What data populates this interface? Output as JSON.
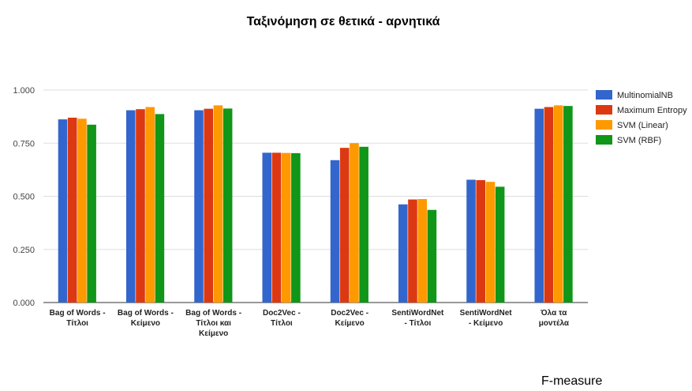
{
  "chart_data": {
    "type": "bar",
    "title": "Ταξινόμηση σε θετικά - αρνητικά",
    "xlabel": "",
    "ylabel": "",
    "ylim": [
      0,
      1
    ],
    "yticks": [
      0,
      0.25,
      0.5,
      0.75,
      1
    ],
    "ytick_labels": [
      "0.000",
      "0.250",
      "0.500",
      "0.750",
      "1.000"
    ],
    "categories": [
      [
        "Bag of Words -",
        "Τίτλοι"
      ],
      [
        "Bag of Words -",
        "Κείμενο"
      ],
      [
        "Bag of Words -",
        "Τίτλοι και",
        "Κείμενο"
      ],
      [
        "Doc2Vec -",
        "Τίτλοι"
      ],
      [
        "Doc2Vec -",
        "Κείμενο"
      ],
      [
        "SentiWordNet",
        "- Τίτλοι"
      ],
      [
        "SentiWordNet",
        "- Κείμενο"
      ],
      [
        "Όλα τα",
        "μοντέλα"
      ]
    ],
    "series": [
      {
        "name": "MultinomialNB",
        "color": "#3366cc",
        "values": [
          0.862,
          0.905,
          0.905,
          0.705,
          0.67,
          0.462,
          0.578,
          0.912
        ]
      },
      {
        "name": "Maximum Entropy",
        "color": "#dc3912",
        "values": [
          0.87,
          0.91,
          0.912,
          0.705,
          0.728,
          0.485,
          0.576,
          0.92
        ]
      },
      {
        "name": "SVM (Linear)",
        "color": "#ff9900",
        "values": [
          0.865,
          0.92,
          0.928,
          0.704,
          0.75,
          0.487,
          0.568,
          0.928
        ]
      },
      {
        "name": "SVM (RBF)",
        "color": "#109618",
        "values": [
          0.837,
          0.887,
          0.913,
          0.703,
          0.733,
          0.436,
          0.545,
          0.925
        ]
      }
    ],
    "legend_position": "right",
    "grid": true
  },
  "caption": "F-measure"
}
